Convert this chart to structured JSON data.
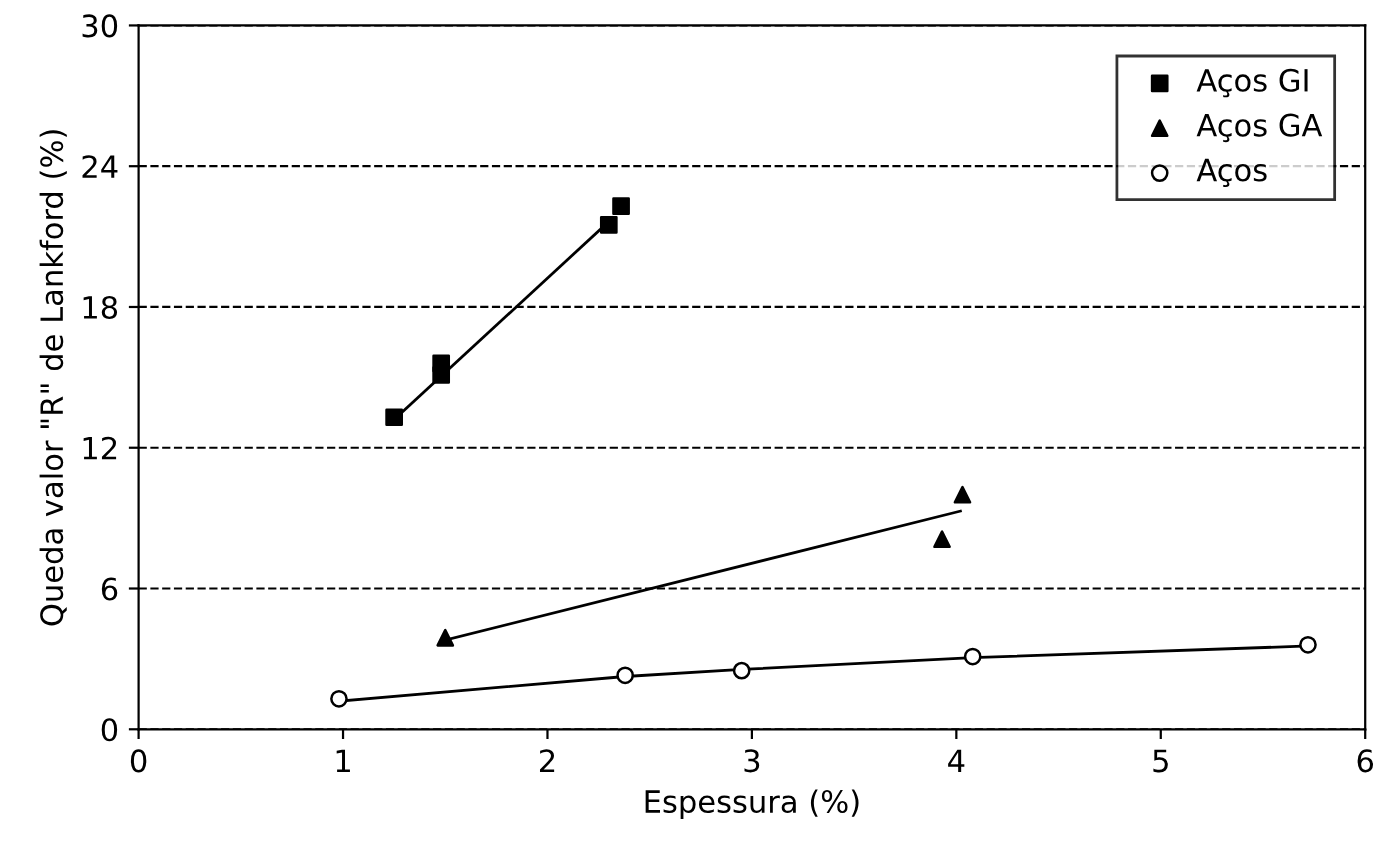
{
  "chart_data": {
    "type": "scatter",
    "xlabel": "Espessura (%)",
    "ylabel": "Queda valor \"R\" de Lankford (%)",
    "xlim": [
      0,
      6
    ],
    "xticks": [
      0,
      1,
      2,
      3,
      4,
      5,
      6
    ],
    "ylim": [
      0,
      30
    ],
    "yticks": [
      0,
      6,
      12,
      18,
      24,
      30
    ],
    "grid": "y",
    "legend": "top right",
    "series": [
      {
        "name": "Aços GI",
        "color": "#000000",
        "marker": "square",
        "x": [
          1.25,
          1.48,
          1.48,
          2.3,
          2.36
        ],
        "values": [
          13.3,
          15.1,
          15.6,
          21.5,
          22.3
        ]
      },
      {
        "name": "Aços GA",
        "color": "#000000",
        "marker": "triangle",
        "x": [
          1.5,
          3.93,
          4.03
        ],
        "values": [
          3.9,
          8.1,
          10.0
        ]
      },
      {
        "name": "Aços",
        "color": "#000000",
        "marker": "circle",
        "x": [
          0.98,
          2.38,
          2.95,
          4.08,
          5.72
        ],
        "values": [
          1.3,
          2.3,
          2.5,
          3.1,
          3.6
        ]
      },
      {
        "type": "line",
        "color": "#000000",
        "marker": "none",
        "x": [
          1.25,
          2.32
        ],
        "values": [
          13.2,
          21.8
        ]
      },
      {
        "type": "line",
        "color": "#000000",
        "marker": "none",
        "x": [
          1.5,
          4.02
        ],
        "values": [
          3.8,
          9.3
        ]
      },
      {
        "type": "line",
        "color": "#000000",
        "marker": "none",
        "x": [
          0.98,
          2.38,
          2.95,
          4.08,
          5.72
        ],
        "values": [
          1.2,
          2.25,
          2.55,
          3.05,
          3.55
        ]
      }
    ]
  }
}
